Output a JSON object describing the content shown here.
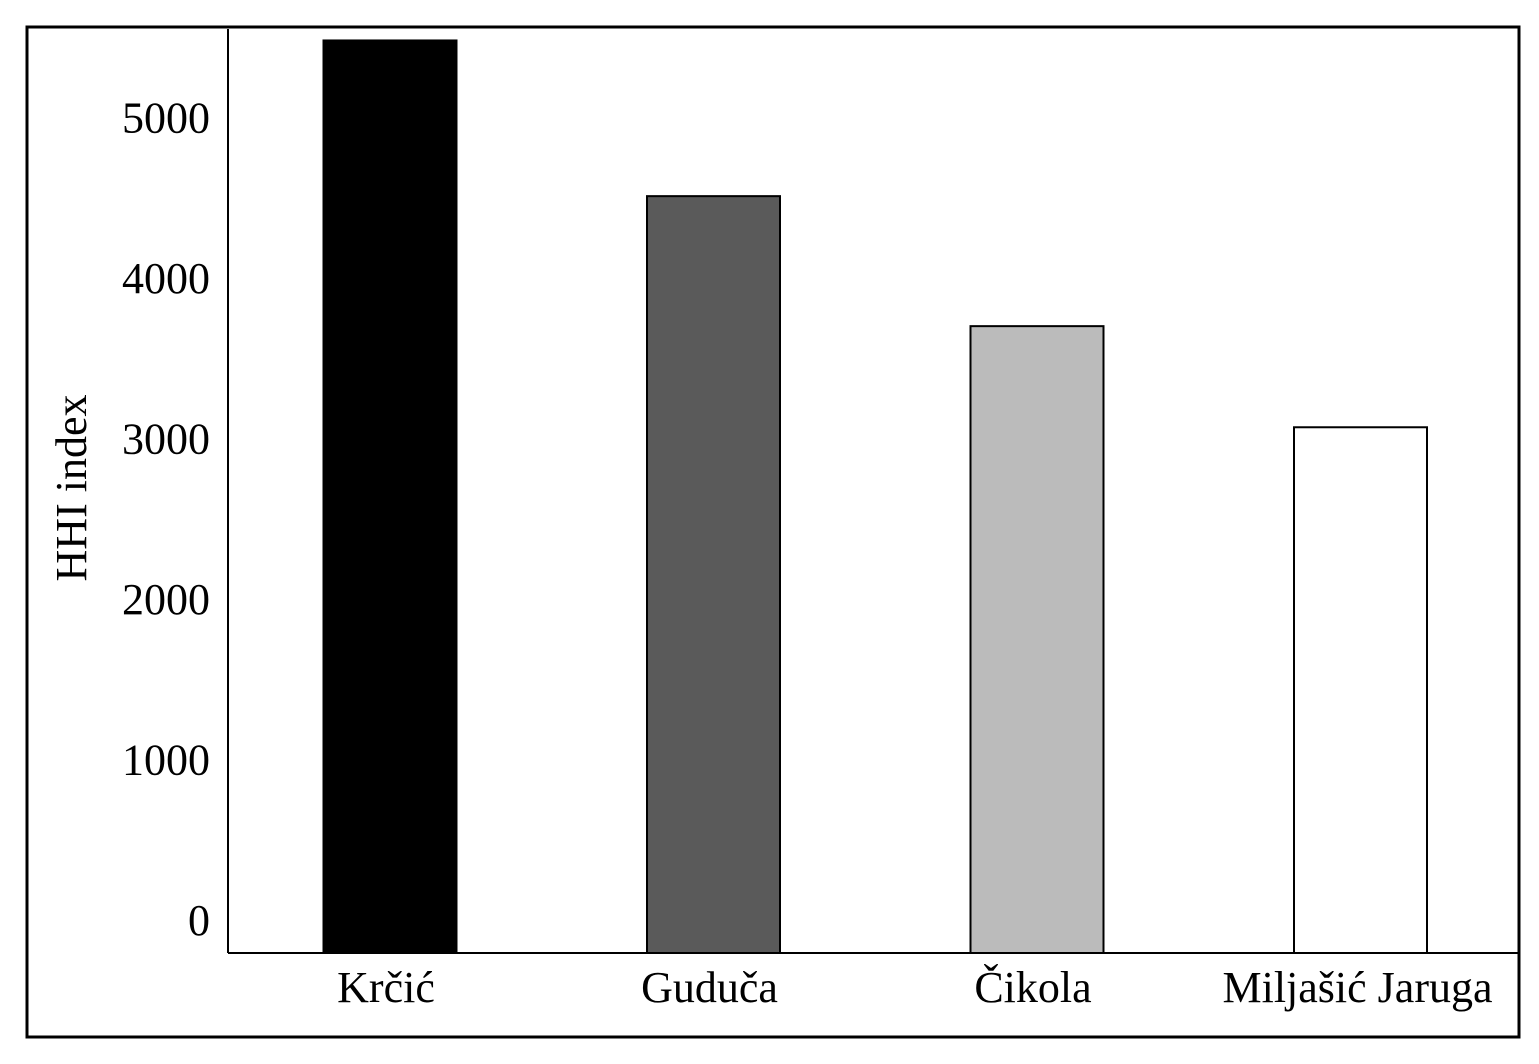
{
  "chart_data": {
    "type": "bar",
    "title": "",
    "xlabel": "",
    "ylabel": "HHI index",
    "categories": [
      "Krčić",
      "Guduča",
      "Čikola",
      "Miljašić Jaruga"
    ],
    "values": [
      5480,
      4510,
      3700,
      3070
    ],
    "bar_colors": [
      "#000000",
      "#5a5a5a",
      "#bbbbbb",
      "#ffffff"
    ],
    "ylim": [
      0,
      5700
    ],
    "yticks": [
      0,
      1000,
      2000,
      3000,
      4000,
      5000
    ],
    "ytick_labels": [
      "0",
      "1000",
      "2000",
      "3000",
      "4000",
      "5000"
    ],
    "grid": false,
    "legend": "none"
  }
}
